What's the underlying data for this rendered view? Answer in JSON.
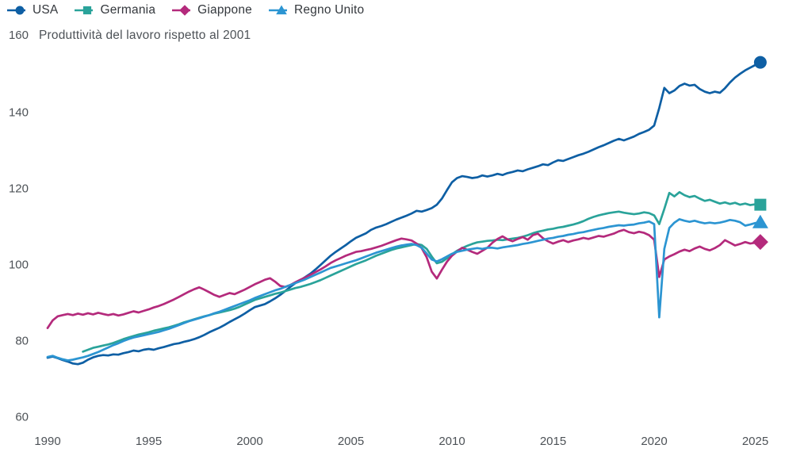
{
  "chart_data": {
    "type": "line",
    "title": "Produttività del lavoro rispetto al 2001",
    "x_axis": {
      "min": 1990,
      "max": 2025,
      "ticks": [
        1990,
        1995,
        2000,
        2005,
        2010,
        2015,
        2020,
        2025
      ]
    },
    "y_axis": {
      "min": 60,
      "max": 160,
      "ticks": [
        140,
        120,
        100,
        80,
        60
      ],
      "top_tick_label": "160"
    },
    "grid": false,
    "legend_position": "top-left",
    "x_step": 0.25,
    "series": [
      {
        "name": "USA",
        "color": "#0e5fa4",
        "marker": "circle",
        "x_start": 1990.0,
        "values": [
          75.4,
          75.7,
          75.3,
          74.8,
          74.4,
          73.9,
          73.7,
          74.1,
          74.9,
          75.5,
          75.9,
          76.1,
          76.0,
          76.3,
          76.2,
          76.6,
          76.9,
          77.3,
          77.1,
          77.5,
          77.7,
          77.5,
          77.9,
          78.2,
          78.6,
          79.0,
          79.2,
          79.6,
          79.9,
          80.3,
          80.8,
          81.4,
          82.1,
          82.7,
          83.3,
          84.0,
          84.8,
          85.5,
          86.2,
          87.0,
          87.9,
          88.7,
          89.1,
          89.5,
          90.2,
          91.0,
          91.9,
          92.9,
          94.0,
          95.0,
          95.8,
          96.6,
          97.5,
          98.6,
          99.8,
          101.0,
          102.2,
          103.2,
          104.1,
          105.0,
          106.0,
          106.9,
          107.5,
          108.1,
          109.0,
          109.6,
          110.0,
          110.5,
          111.1,
          111.7,
          112.2,
          112.7,
          113.3,
          114.0,
          113.8,
          114.2,
          114.7,
          115.6,
          117.2,
          119.4,
          121.5,
          122.6,
          123.1,
          122.9,
          122.6,
          122.8,
          123.3,
          123.0,
          123.3,
          123.7,
          123.4,
          123.9,
          124.2,
          124.6,
          124.4,
          124.9,
          125.3,
          125.7,
          126.2,
          126.0,
          126.7,
          127.3,
          127.1,
          127.6,
          128.1,
          128.6,
          129.0,
          129.5,
          130.1,
          130.7,
          131.2,
          131.8,
          132.4,
          132.9,
          132.5,
          133.0,
          133.5,
          134.2,
          134.7,
          135.3,
          136.4,
          141.0,
          146.3,
          144.9,
          145.6,
          146.8,
          147.4,
          146.9,
          147.1,
          146.0,
          145.3,
          144.9,
          145.3,
          145.0,
          146.2,
          147.7,
          149.0,
          150.0,
          150.9,
          151.6,
          152.3,
          153.0
        ]
      },
      {
        "name": "Germania",
        "color": "#2aa39a",
        "marker": "square",
        "x_start": 1991.75,
        "values": [
          77.0,
          77.5,
          78.0,
          78.3,
          78.6,
          78.9,
          79.3,
          79.8,
          80.3,
          80.7,
          81.1,
          81.5,
          81.8,
          82.1,
          82.5,
          82.8,
          83.1,
          83.4,
          83.8,
          84.2,
          84.7,
          85.1,
          85.5,
          85.9,
          86.3,
          86.6,
          87.0,
          87.3,
          87.6,
          87.9,
          88.3,
          88.8,
          89.4,
          90.0,
          90.6,
          91.0,
          91.4,
          91.8,
          92.2,
          92.5,
          92.9,
          93.3,
          93.7,
          94.0,
          94.4,
          94.8,
          95.3,
          95.8,
          96.4,
          97.0,
          97.6,
          98.2,
          98.8,
          99.4,
          100.0,
          100.5,
          101.0,
          101.6,
          102.2,
          102.7,
          103.2,
          103.7,
          104.1,
          104.4,
          104.7,
          105.0,
          105.3,
          105.0,
          104.0,
          102.0,
          100.2,
          100.6,
          101.5,
          102.6,
          103.5,
          104.2,
          104.8,
          105.3,
          105.7,
          105.9,
          106.1,
          106.2,
          106.4,
          106.3,
          106.5,
          106.7,
          106.9,
          107.2,
          107.6,
          108.1,
          108.5,
          108.8,
          109.1,
          109.3,
          109.6,
          109.8,
          110.1,
          110.4,
          110.8,
          111.3,
          111.9,
          112.4,
          112.8,
          113.1,
          113.4,
          113.6,
          113.8,
          113.5,
          113.3,
          113.1,
          113.3,
          113.6,
          113.4,
          112.8,
          110.5,
          114.5,
          118.7,
          117.8,
          118.9,
          118.1,
          117.6,
          117.9,
          117.2,
          116.6,
          116.9,
          116.4,
          115.9,
          116.2,
          115.8,
          116.1,
          115.6,
          115.9,
          115.5,
          115.7,
          115.6
        ]
      },
      {
        "name": "Giappone",
        "color": "#b42a7c",
        "marker": "diamond",
        "x_start": 1990.0,
        "values": [
          83.2,
          85.2,
          86.3,
          86.6,
          86.9,
          86.6,
          87.0,
          86.7,
          87.1,
          86.8,
          87.2,
          86.9,
          86.6,
          86.9,
          86.5,
          86.8,
          87.2,
          87.6,
          87.3,
          87.7,
          88.1,
          88.6,
          89.0,
          89.5,
          90.1,
          90.7,
          91.4,
          92.1,
          92.8,
          93.4,
          93.9,
          93.3,
          92.6,
          91.9,
          91.4,
          91.9,
          92.4,
          92.1,
          92.7,
          93.3,
          94.0,
          94.7,
          95.3,
          95.9,
          96.3,
          95.4,
          94.3,
          94.0,
          94.5,
          95.2,
          95.9,
          96.5,
          97.2,
          97.9,
          98.6,
          99.4,
          100.3,
          101.0,
          101.6,
          102.2,
          102.7,
          103.2,
          103.4,
          103.7,
          104.0,
          104.4,
          104.8,
          105.3,
          105.8,
          106.3,
          106.7,
          106.5,
          106.2,
          105.4,
          104.2,
          101.8,
          98.0,
          96.2,
          98.5,
          100.6,
          102.2,
          103.3,
          104.3,
          103.8,
          103.2,
          102.7,
          103.5,
          104.3,
          105.6,
          106.6,
          107.3,
          106.5,
          106.0,
          106.6,
          107.1,
          106.4,
          107.6,
          108.0,
          106.8,
          106.0,
          105.4,
          105.9,
          106.3,
          105.8,
          106.2,
          106.5,
          106.9,
          106.6,
          107.0,
          107.4,
          107.2,
          107.6,
          108.0,
          108.6,
          109.0,
          108.4,
          108.1,
          108.5,
          108.2,
          107.6,
          106.4,
          96.6,
          101.2,
          102.0,
          102.6,
          103.3,
          103.8,
          103.4,
          104.1,
          104.6,
          104.0,
          103.6,
          104.2,
          105.0,
          106.3,
          105.6,
          104.9,
          105.3,
          105.8,
          105.4,
          105.6,
          105.8
        ]
      },
      {
        "name": "Regno Unito",
        "color": "#2c95d2",
        "marker": "triangle",
        "x_start": 1990.0,
        "values": [
          75.6,
          75.9,
          75.4,
          75.0,
          74.7,
          74.9,
          75.2,
          75.5,
          75.9,
          76.4,
          76.9,
          77.5,
          78.1,
          78.7,
          79.2,
          79.8,
          80.3,
          80.7,
          81.0,
          81.3,
          81.6,
          81.9,
          82.2,
          82.6,
          83.0,
          83.5,
          84.0,
          84.5,
          85.0,
          85.4,
          85.8,
          86.2,
          86.6,
          87.1,
          87.5,
          88.0,
          88.5,
          89.0,
          89.5,
          90.0,
          90.5,
          91.1,
          91.6,
          92.1,
          92.6,
          93.1,
          93.5,
          94.0,
          94.5,
          95.0,
          95.5,
          96.0,
          96.6,
          97.2,
          97.8,
          98.4,
          99.0,
          99.4,
          99.8,
          100.2,
          100.6,
          101.0,
          101.5,
          102.0,
          102.5,
          103.0,
          103.4,
          103.8,
          104.2,
          104.6,
          104.9,
          105.1,
          105.3,
          105.0,
          104.3,
          102.8,
          101.2,
          100.7,
          101.3,
          102.0,
          102.7,
          103.2,
          103.5,
          103.8,
          104.0,
          104.2,
          104.0,
          104.3,
          104.3,
          104.1,
          104.4,
          104.6,
          104.8,
          105.0,
          105.3,
          105.5,
          105.8,
          106.1,
          106.4,
          106.7,
          106.9,
          107.2,
          107.4,
          107.7,
          107.9,
          108.2,
          108.4,
          108.7,
          109.0,
          109.3,
          109.5,
          109.8,
          110.0,
          110.2,
          110.1,
          110.3,
          110.4,
          110.7,
          110.9,
          111.2,
          110.5,
          86.0,
          104.0,
          109.5,
          110.9,
          111.8,
          111.4,
          111.1,
          111.4,
          111.0,
          110.7,
          110.9,
          110.7,
          110.9,
          111.2,
          111.6,
          111.4,
          111.0,
          110.1,
          110.4,
          110.8,
          111.0
        ]
      }
    ]
  }
}
